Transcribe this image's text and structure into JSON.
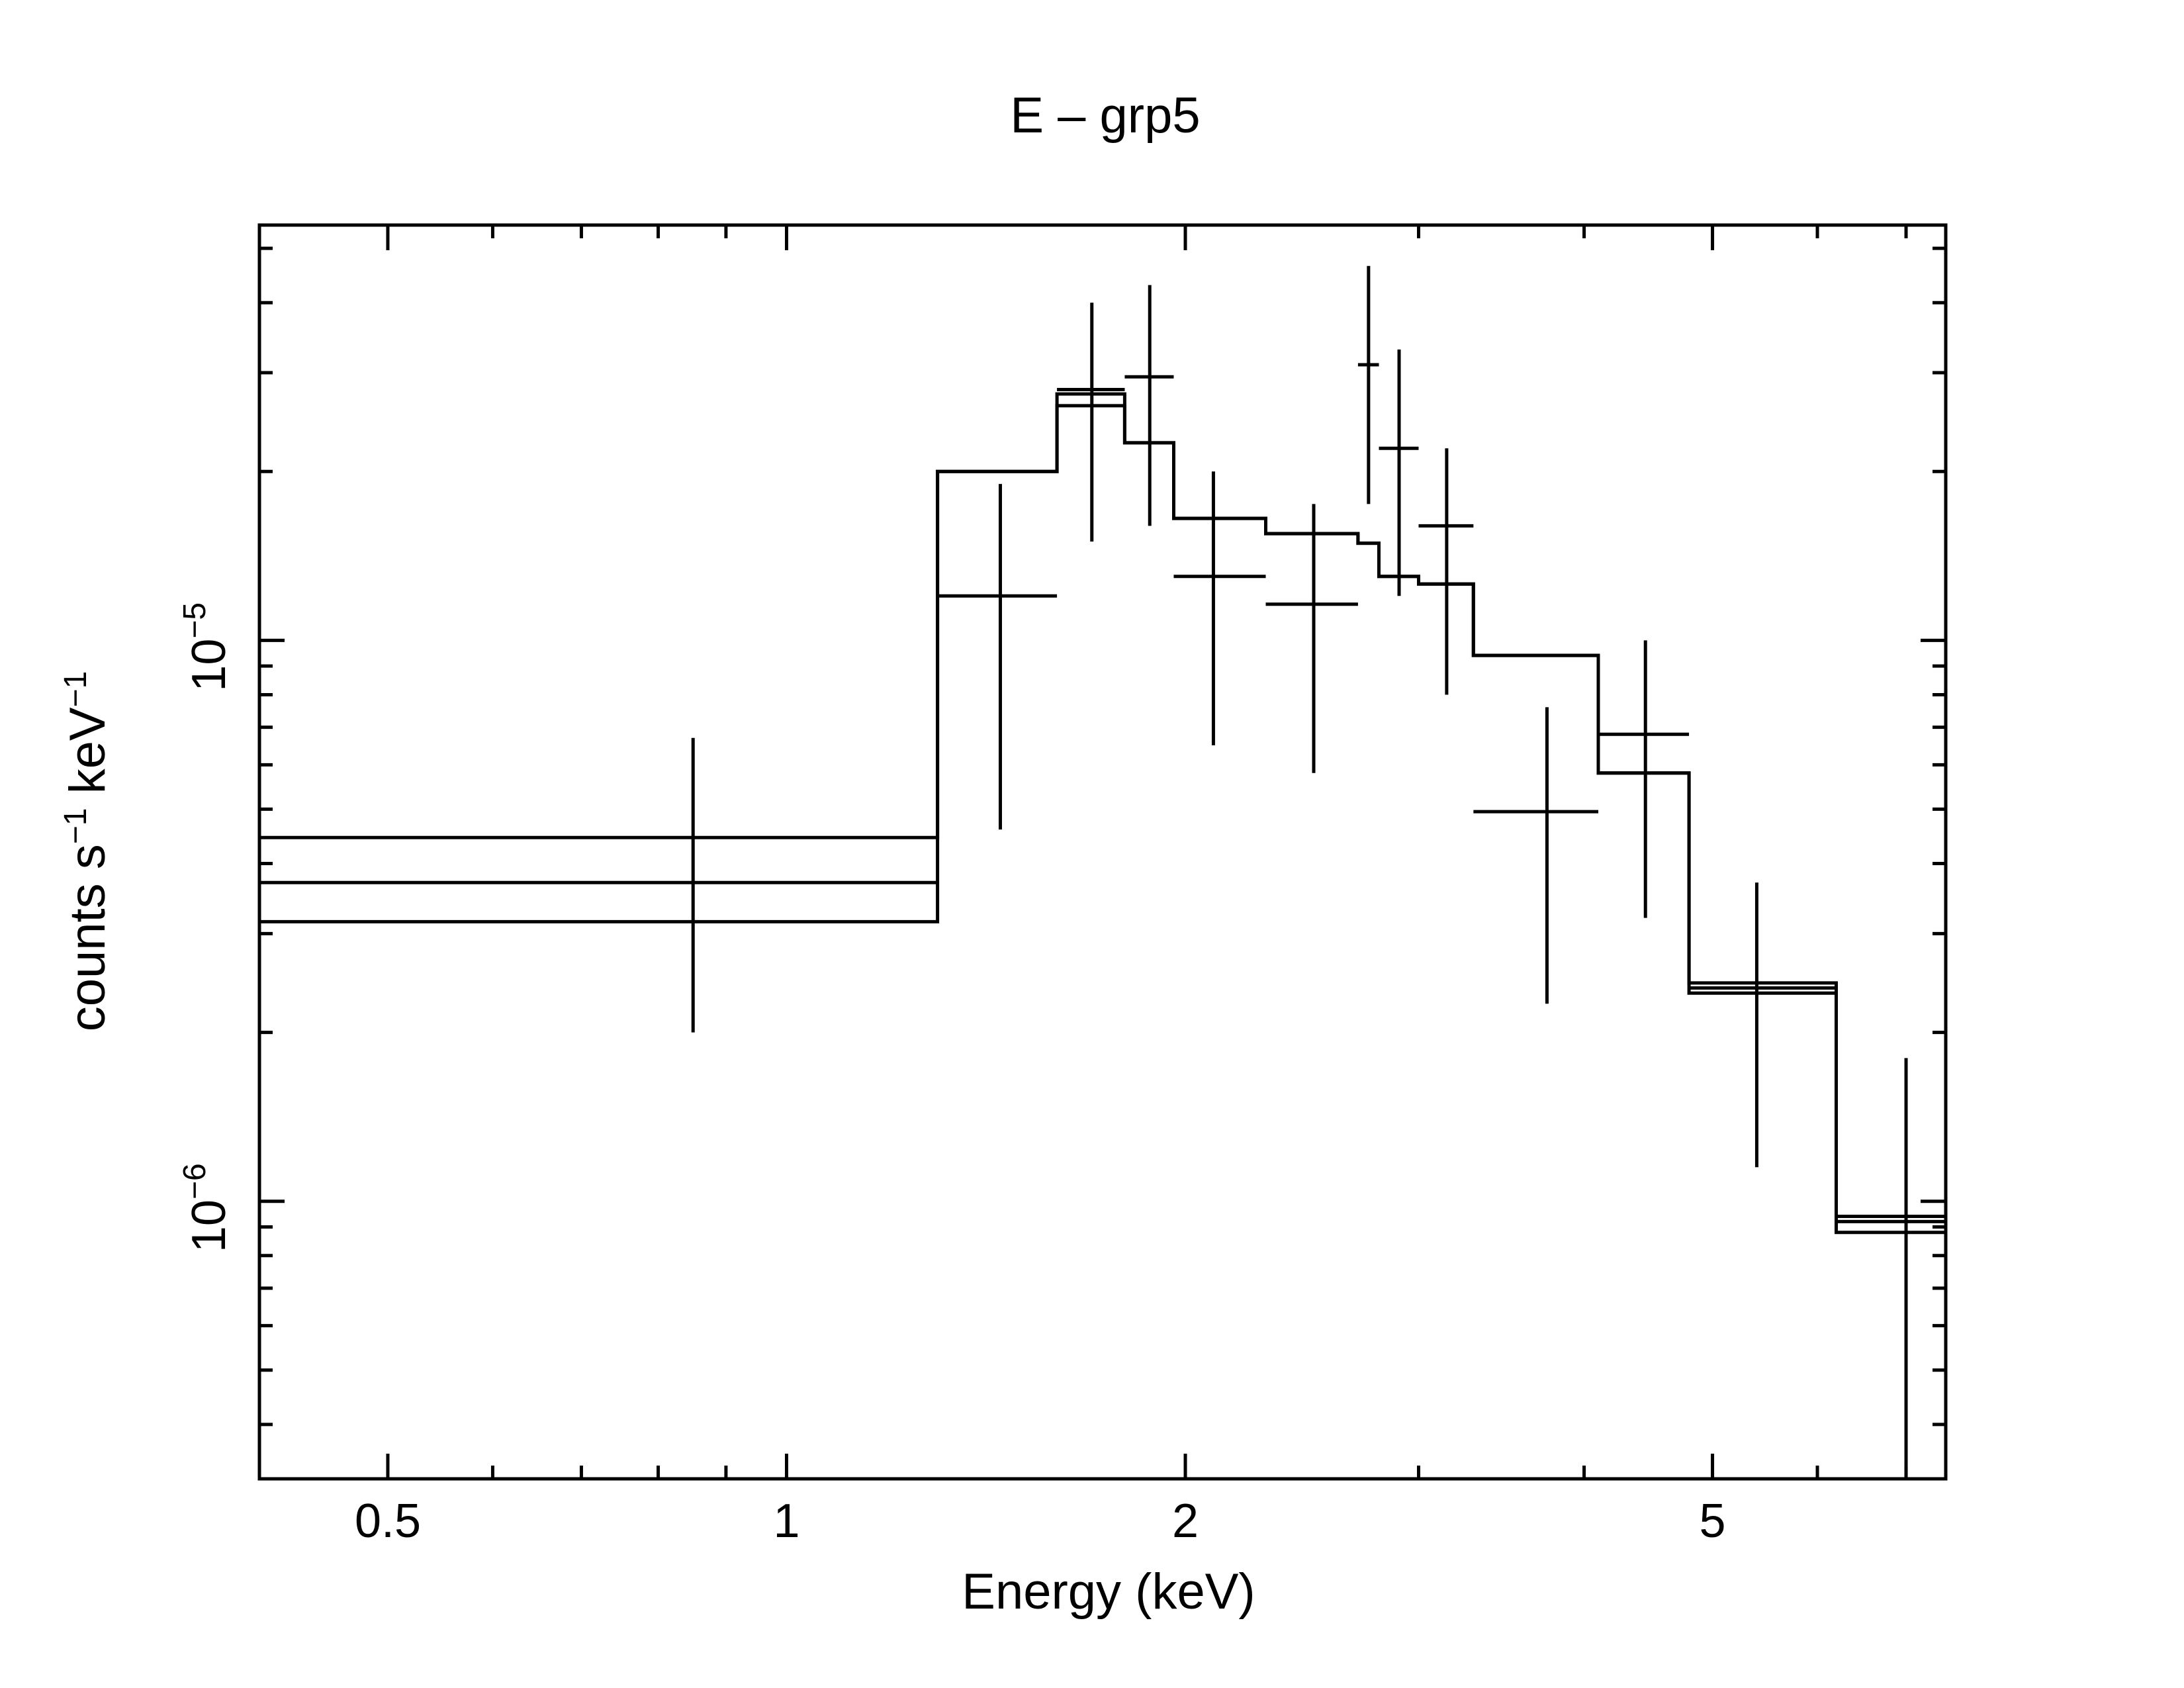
{
  "chart_data": {
    "type": "scatter",
    "title": "E – grp5",
    "xlabel": "Energy (keV)",
    "ylabel": {
      "prefix": "counts s",
      "exp1": "−1",
      "middle": " keV",
      "exp2": "−1"
    },
    "xscale": "log",
    "yscale": "log",
    "xlim": [
      0.4,
      7.5
    ],
    "ylim": [
      3.2e-07,
      5.5e-05
    ],
    "x_ticks": [
      {
        "value": 0.5,
        "label": "0.5"
      },
      {
        "value": 1,
        "label": "1"
      },
      {
        "value": 2,
        "label": "2"
      },
      {
        "value": 5,
        "label": "5"
      }
    ],
    "y_ticks": [
      {
        "value": 1e-06,
        "base": "10",
        "exp": "−6"
      },
      {
        "value": 1e-05,
        "base": "10",
        "exp": "−5"
      }
    ],
    "data": [
      {
        "x": 0.85,
        "xlo": 0.4,
        "xhi": 1.3,
        "y": 3.7e-06,
        "ylo": 2e-06,
        "yhi": 6.7e-06
      },
      {
        "x": 1.45,
        "xlo": 1.3,
        "xhi": 1.6,
        "y": 1.2e-05,
        "ylo": 4.6e-06,
        "yhi": 1.9e-05
      },
      {
        "x": 1.7,
        "xlo": 1.6,
        "xhi": 1.8,
        "y": 2.8e-05,
        "ylo": 1.5e-05,
        "yhi": 4e-05
      },
      {
        "x": 1.88,
        "xlo": 1.8,
        "xhi": 1.96,
        "y": 2.95e-05,
        "ylo": 1.6e-05,
        "yhi": 4.3e-05
      },
      {
        "x": 2.1,
        "xlo": 1.96,
        "xhi": 2.3,
        "y": 1.3e-05,
        "ylo": 6.5e-06,
        "yhi": 2e-05
      },
      {
        "x": 2.5,
        "xlo": 2.3,
        "xhi": 2.7,
        "y": 1.16e-05,
        "ylo": 5.8e-06,
        "yhi": 1.75e-05
      },
      {
        "x": 2.75,
        "xlo": 2.7,
        "xhi": 2.8,
        "y": 3.1e-05,
        "ylo": 1.75e-05,
        "yhi": 4.65e-05
      },
      {
        "x": 2.9,
        "xlo": 2.8,
        "xhi": 3.0,
        "y": 2.2e-05,
        "ylo": 1.2e-05,
        "yhi": 3.3e-05
      },
      {
        "x": 3.15,
        "xlo": 3.0,
        "xhi": 3.3,
        "y": 1.6e-05,
        "ylo": 8e-06,
        "yhi": 2.2e-05
      },
      {
        "x": 3.75,
        "xlo": 3.3,
        "xhi": 4.1,
        "y": 4.95e-06,
        "ylo": 2.25e-06,
        "yhi": 7.6e-06
      },
      {
        "x": 4.45,
        "xlo": 4.1,
        "xhi": 4.8,
        "y": 6.8e-06,
        "ylo": 3.2e-06,
        "yhi": 1e-05
      },
      {
        "x": 5.4,
        "xlo": 4.8,
        "xhi": 6.2,
        "y": 2.4e-06,
        "ylo": 1.15e-06,
        "yhi": 3.7e-06
      },
      {
        "x": 7.0,
        "xlo": 6.2,
        "xhi": 7.5,
        "y": 9.4e-07,
        "ylo": 3.2e-07,
        "yhi": 1.8e-06
      }
    ],
    "model_upper": [
      {
        "xlo": 0.4,
        "xhi": 1.3,
        "y": 4.45e-06
      },
      {
        "xlo": 1.3,
        "xhi": 1.6,
        "y": 2e-05
      },
      {
        "xlo": 1.6,
        "xhi": 1.8,
        "y": 2.75e-05
      },
      {
        "xlo": 1.8,
        "xhi": 1.96,
        "y": 2.25e-05
      },
      {
        "xlo": 1.96,
        "xhi": 2.3,
        "y": 1.65e-05
      },
      {
        "xlo": 2.3,
        "xhi": 2.7,
        "y": 1.55e-05
      },
      {
        "xlo": 2.7,
        "xhi": 2.8,
        "y": 1.49e-05
      },
      {
        "xlo": 2.8,
        "xhi": 3.0,
        "y": 1.3e-05
      },
      {
        "xlo": 3.0,
        "xhi": 3.3,
        "y": 1.26e-05
      },
      {
        "xlo": 3.3,
        "xhi": 4.1,
        "y": 9.4e-06
      },
      {
        "xlo": 4.1,
        "xhi": 4.8,
        "y": 5.8e-06
      },
      {
        "xlo": 4.8,
        "xhi": 6.2,
        "y": 2.45e-06
      },
      {
        "xlo": 6.2,
        "xhi": 7.5,
        "y": 9.2e-07
      }
    ],
    "model_lower": [
      {
        "xlo": 0.4,
        "xhi": 1.3,
        "y": 3.15e-06
      },
      {
        "xlo": 1.3,
        "xhi": 1.6,
        "y": 2e-05
      },
      {
        "xlo": 1.6,
        "xhi": 1.8,
        "y": 2.62e-05
      },
      {
        "xlo": 1.8,
        "xhi": 1.96,
        "y": 2.25e-05
      },
      {
        "xlo": 1.96,
        "xhi": 2.3,
        "y": 1.65e-05
      },
      {
        "xlo": 2.3,
        "xhi": 2.7,
        "y": 1.55e-05
      },
      {
        "xlo": 2.7,
        "xhi": 2.8,
        "y": 1.49e-05
      },
      {
        "xlo": 2.8,
        "xhi": 3.0,
        "y": 1.3e-05
      },
      {
        "xlo": 3.0,
        "xhi": 3.3,
        "y": 1.26e-05
      },
      {
        "xlo": 3.3,
        "xhi": 4.1,
        "y": 9.4e-06
      },
      {
        "xlo": 4.1,
        "xhi": 4.8,
        "y": 5.8e-06
      },
      {
        "xlo": 4.8,
        "xhi": 6.2,
        "y": 2.35e-06
      },
      {
        "xlo": 6.2,
        "xhi": 7.5,
        "y": 8.8e-07
      }
    ]
  }
}
